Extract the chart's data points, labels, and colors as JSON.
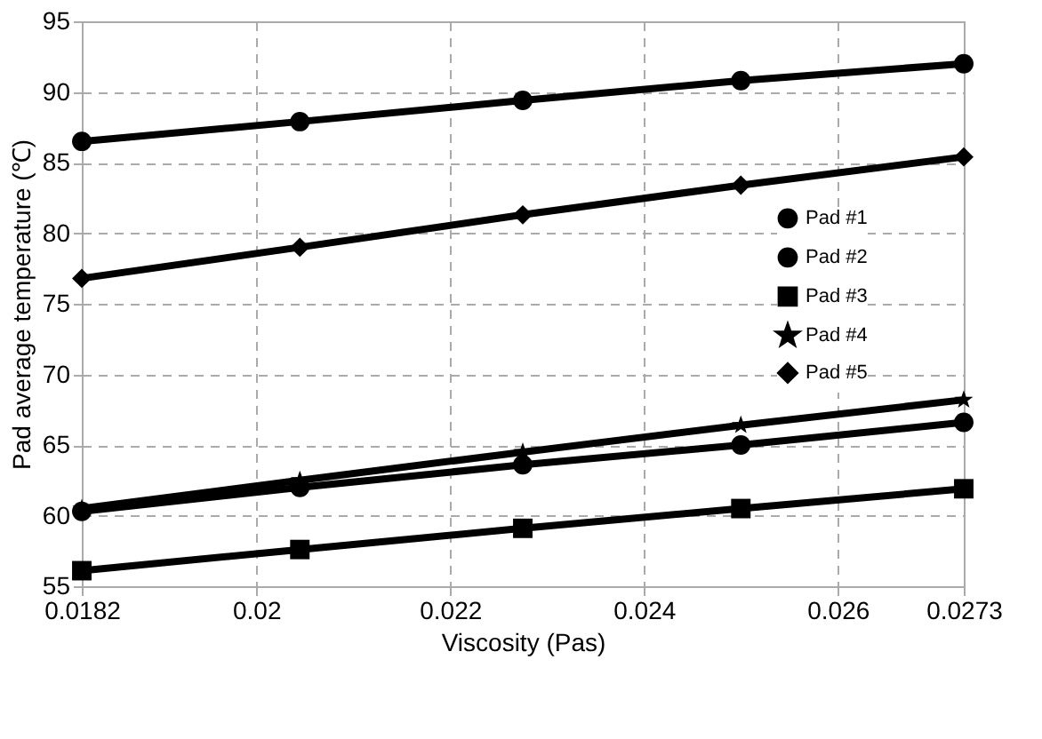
{
  "chart_data": {
    "type": "line",
    "xlabel": "Viscosity (Pas)",
    "ylabel": "Pad average temperature (℃)",
    "x": [
      0.0182,
      0.02045,
      0.02275,
      0.025,
      0.0273
    ],
    "series": [
      {
        "name": "Pad #1",
        "color": "#000000",
        "marker": "circle",
        "values": [
          86.5,
          87.9,
          89.4,
          90.8,
          92.0
        ]
      },
      {
        "name": "Pad #2",
        "color": "#000000",
        "marker": "circle",
        "values": [
          60.3,
          62.0,
          63.6,
          65.0,
          66.6
        ]
      },
      {
        "name": "Pad #3",
        "color": "#000000",
        "marker": "square",
        "values": [
          56.1,
          57.6,
          59.1,
          60.5,
          61.9
        ]
      },
      {
        "name": "Pad #4",
        "color": "#000000",
        "marker": "star",
        "values": [
          60.5,
          62.5,
          64.5,
          66.4,
          68.2
        ]
      },
      {
        "name": "Pad #5",
        "color": "#000000",
        "marker": "diamond",
        "values": [
          76.8,
          79.0,
          81.3,
          83.4,
          85.4
        ]
      }
    ],
    "xlim": [
      0.0182,
      0.0273
    ],
    "xticks": [
      0.0182,
      0.02,
      0.022,
      0.024,
      0.026,
      0.0273
    ],
    "ylim": [
      55,
      95
    ],
    "yticks": [
      55,
      60,
      65,
      70,
      75,
      80,
      85,
      90,
      95
    ],
    "grid": true,
    "legend": "right",
    "line_style": "solid"
  }
}
